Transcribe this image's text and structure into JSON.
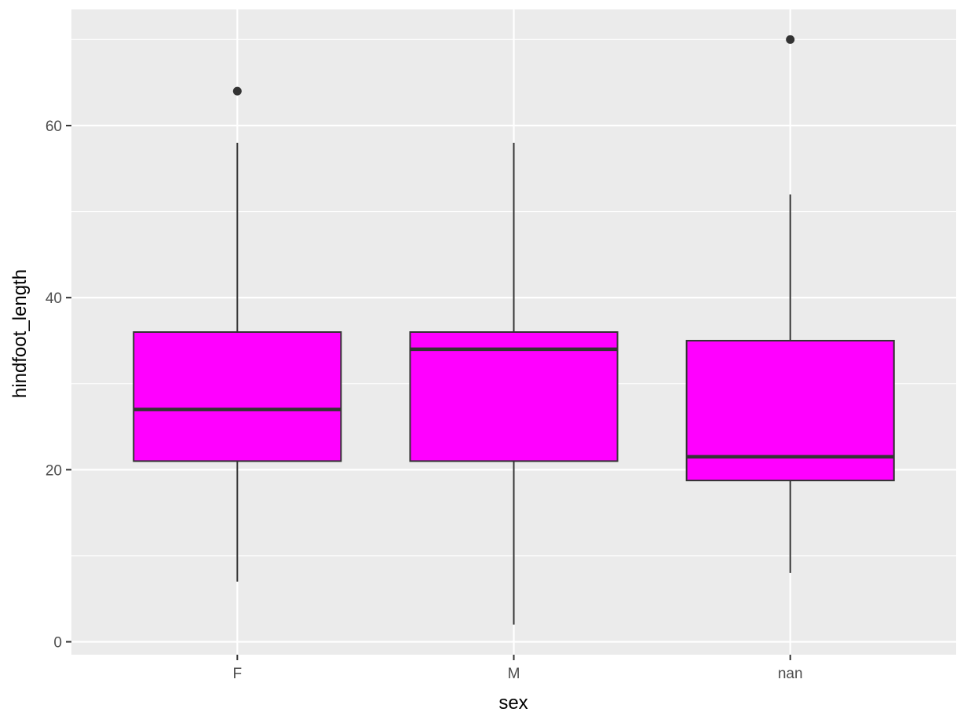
{
  "chart_data": {
    "type": "boxplot",
    "title": "",
    "xlabel": "sex",
    "ylabel": "hindfoot_length",
    "categories": [
      "F",
      "M",
      "nan"
    ],
    "ylim": [
      -1.5,
      73.5
    ],
    "y_ticks": [
      0,
      20,
      40,
      60
    ],
    "y_tick_labels": [
      "0",
      "20",
      "40",
      "60"
    ],
    "grid": true,
    "legend": "none",
    "box_fill": "#ff00ff",
    "line_color": "#333333",
    "panel_background": "#ebebeb",
    "gridline_color": "#ffffff",
    "boxes": [
      {
        "category": "F",
        "whisker_low": 7,
        "q1": 21,
        "median": 27,
        "q3": 36,
        "whisker_high": 58,
        "outliers": [
          64
        ]
      },
      {
        "category": "M",
        "whisker_low": 2,
        "q1": 21,
        "median": 34,
        "q3": 36,
        "whisker_high": 58,
        "outliers": []
      },
      {
        "category": "nan",
        "whisker_low": 8,
        "q1": 18.75,
        "median": 21.5,
        "q3": 35,
        "whisker_high": 52,
        "outliers": [
          70
        ]
      }
    ]
  }
}
